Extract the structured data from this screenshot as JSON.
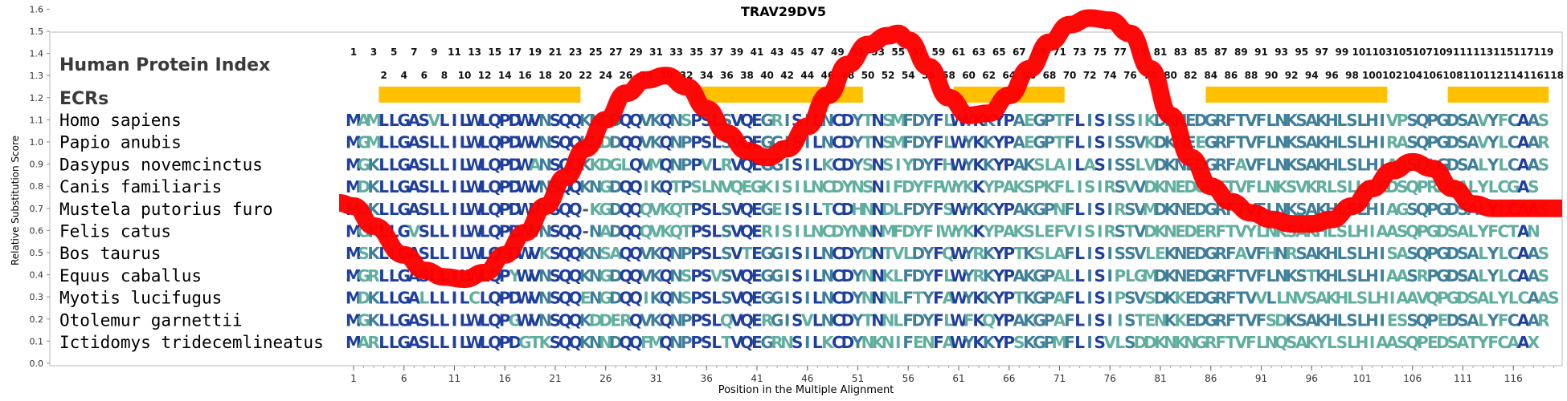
{
  "chart_data": {
    "type": "line",
    "title": "TRAV29DV5",
    "xlabel": "Position in the Multiple Alignment",
    "ylabel": "Relative Substitution Score",
    "ylim": [
      0.0,
      1.8
    ],
    "yticks": [
      "0.0",
      "0.1",
      "0.2",
      "0.3",
      "0.4",
      "0.5",
      "0.6",
      "0.7",
      "0.8",
      "0.9",
      "1.0",
      "1.1",
      "1.2",
      "1.3",
      "1.4",
      "1.5",
      "1.6",
      "1.7",
      "1.8"
    ],
    "xlim": [
      1,
      120
    ],
    "xticks": [
      1,
      6,
      11,
      16,
      21,
      26,
      31,
      36,
      41,
      46,
      51,
      56,
      61,
      66,
      71,
      76,
      81,
      86,
      91,
      96,
      101,
      106,
      111,
      116
    ],
    "grid": false,
    "line_color": "#ff0000",
    "series": [
      {
        "x": [
          1,
          3,
          6,
          8,
          10,
          12,
          14,
          16,
          18,
          20,
          22,
          24,
          26,
          28,
          30,
          32,
          34,
          36,
          38,
          40,
          42,
          44,
          46,
          48,
          50,
          52,
          54,
          55,
          56,
          58,
          60,
          62,
          64,
          66,
          68,
          70,
          72,
          74,
          76,
          78,
          80,
          82,
          84,
          86,
          88,
          90,
          92,
          94,
          96,
          98,
          100,
          102,
          104,
          106,
          108,
          110,
          112,
          114,
          116,
          118,
          120
        ],
        "y": [
          0.71,
          0.62,
          0.49,
          0.42,
          0.39,
          0.38,
          0.41,
          0.49,
          0.59,
          0.71,
          0.84,
          0.97,
          1.1,
          1.22,
          1.28,
          1.3,
          1.25,
          1.15,
          1.04,
          0.96,
          0.93,
          0.97,
          1.07,
          1.21,
          1.35,
          1.44,
          1.48,
          1.49,
          1.46,
          1.34,
          1.2,
          1.12,
          1.13,
          1.21,
          1.33,
          1.45,
          1.53,
          1.56,
          1.55,
          1.49,
          1.33,
          1.12,
          0.93,
          0.8,
          0.73,
          0.68,
          0.65,
          0.63,
          0.63,
          0.65,
          0.71,
          0.79,
          0.87,
          0.91,
          0.88,
          0.79,
          0.72,
          0.7,
          0.7,
          0.7,
          0.7
        ]
      }
    ],
    "index_label": "Human Protein Index",
    "index_row_odd": [
      "1",
      "3",
      "5",
      "7",
      "9",
      "11",
      "13",
      "15",
      "17",
      "19",
      "21",
      "23",
      "25",
      "27",
      "29",
      "31",
      "33",
      "35",
      "37",
      "39",
      "41",
      "43",
      "45",
      "47",
      "49",
      "51",
      "53",
      "55",
      "57",
      "59",
      "61",
      "63",
      "65",
      "67",
      "69",
      "71",
      "73",
      "75",
      "77",
      "79",
      "81",
      "83",
      "85",
      "87",
      "89",
      "91",
      "93",
      "95",
      "97",
      "99",
      "101",
      "103",
      "105",
      "107",
      "109",
      "111",
      "113",
      "115",
      "117",
      "119"
    ],
    "index_row_even": [
      "2",
      "4",
      "6",
      "8",
      "10",
      "12",
      "14",
      "16",
      "18",
      "20",
      "22",
      "24",
      "26",
      "28",
      "30",
      "32",
      "34",
      "36",
      "38",
      "40",
      "42",
      "44",
      "46",
      "48",
      "50",
      "52",
      "54",
      "56",
      "58",
      "60",
      "62",
      "64",
      "66",
      "68",
      "70",
      "72",
      "74",
      "76",
      "78",
      "80",
      "82",
      "84",
      "86",
      "88",
      "90",
      "92",
      "94",
      "96",
      "98",
      "100",
      "102",
      "104",
      "106",
      "108",
      "110",
      "112",
      "114",
      "116",
      "118"
    ],
    "ecr_label": "ECRs",
    "ecr_color": "#ffc000",
    "ecr_regions": [
      [
        4,
        23
      ],
      [
        35,
        51
      ],
      [
        61,
        71
      ],
      [
        86,
        103
      ],
      [
        110,
        119
      ]
    ],
    "sequences": [
      {
        "species": "Homo sapiens",
        "seq": "MAMLLGASVLILWLQPDWVNSQQKNDDQQVKQNSPSLSVQEGRISILNCDYTNSMFDYFLWYKKYPAEGPTFLISISSIKDKNEDGRFTVFLNKSAKHLSLHIVPSQPGDSAVYFCAAS"
      },
      {
        "species": "Papio anubis",
        "seq": "MGMLLGASLLILWLQPDWVNSQQKNDDQQVKQNPPSLSVQEGGISILNCDYTNSMFDYFLWYKKYPAEGPTFLISISSVKDKNEEGRFTVFLNKSAKHLSLHIRASQPGDSAVYLCAAR"
      },
      {
        "species": "Dasypus novemcinctus",
        "seq": "MGKLLGASLLILWLQPDWANSQQKKDGLQVMQNPPVLRVQEGGISILKCDYSNSIYDYFHWYKKYPAKSLAILASISSLVDKNEDGRFAVFLNKSAKHLSLHIAASQLGDSALYLCAAS"
      },
      {
        "species": "Canis familiaris",
        "seq": "MDKLLGASLLILWLQPDWVNSQQKNGDQQIKQTPSLNVQEGKISILNCDYNSNIFDYFPWYKKYPAKSPKFLISIRSVVDKNEDGRFTVFLNKSVKRLSLHIKDSQPRDSALYLCGAS"
      },
      {
        "species": "Mustela putorius furo",
        "seq": "MDKLLGASLLILWLQPDWVTSQQ-KGDQQQVKQTPSLSVQEGEISILTCDHNNDLFDYFSWYKKYPAKGPNFLISIRSVMDKNEDGRFTVFLNKSAKHLSLHIAGSQPGDSALYLCAAS"
      },
      {
        "species": "Felis catus",
        "seq": "MGKLLGVSLLILWLQPDWVNSQQ-NADQQQVKQTPSLSVQERISILNCDYNNNMFDYFIWYKKYPAKSLEFVISIRSTVDKNEDERFTVYLNKSAKHLSLHIAASQPGDSALYFCTAN"
      },
      {
        "species": "Bos taurus",
        "seq": "MSKLLGASLLILWLQSDWVKSQQKNSAQQVKQNPPSLSVTEGGISILNCDYDNTVLDYFQWYRKYPTKSLAFLISISSVLEKNEDGRFAVFHNRSAKHLSLHISASQPGDSALYLCAAS"
      },
      {
        "species": "Equus caballus",
        "seq": "MGRLLGASLLILWLQPYWVNSQQKNGDQQVKQNSPSVSVQEGGISILNCDYNNKLFDYFLWYRKYPAKGPALLISIPLGMDKNEDGRFTVFLNKSTKHLSLHIAASRPGDSALYLCAAS"
      },
      {
        "species": "Myotis lucifugus",
        "seq": "MDKLLGALLLILCLQPDWVNSQQENGDQQIKQNSPSLSVQEGGISILNCDYNNNLFTYFAWYKKYPTKGPAFLISIPSVSDKKEDGRFTVVLLNVSAKHLSLHIAAVQPGDSALYLCAAS"
      },
      {
        "species": "Otolemur garnettii",
        "seq": "MGKLLGASLLILWLQPGWVNSQQKDDERQVKQNPPSLQVQERGISVLNCDYTNNLFDYFLWFKQYPAKGPAFLISIISTENKKEDGRFTVFSDKSAKHLSLHIESSQPEDSALYFCAAR"
      },
      {
        "species": "Ictidomys tridecemlineatus",
        "seq": "MARLLGASLLILWLQPDGTKSQQKNNDQQFMQNPPSLTVQEGRNSILKCDYNKNIFENFAWYKKYPSKGPMFLISVLSDDKNKNGRFTVFLNQSAKYLSLHIAASQPEDSATYFCAAX"
      }
    ]
  }
}
